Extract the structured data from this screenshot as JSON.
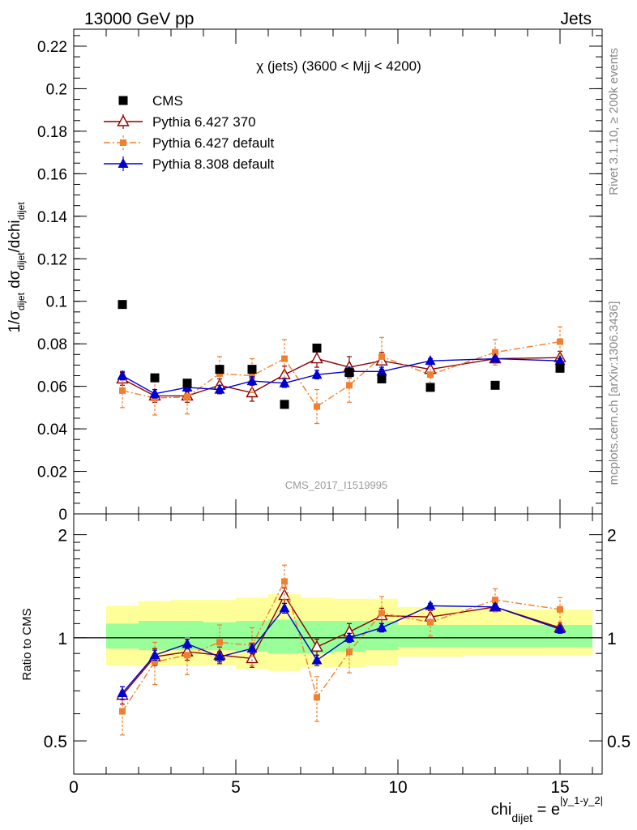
{
  "header": {
    "left_title": "13000 GeV pp",
    "right_title": "Jets",
    "plot_title": "χ (jets) (3600 < Mjj < 4200)",
    "watermark": "CMS_2017_I1519995",
    "side_label_top": "Rivet 3.1.10, ≥ 200k events",
    "side_label_bottom": "mcplots.cern.ch [arXiv:1306.3436]"
  },
  "chart_data": [
    {
      "type": "scatter",
      "panel": "main",
      "ylabel": "1/σdijet dσdijet/dchidijet",
      "ylim": [
        0,
        0.228
      ],
      "yticks": [
        "0",
        "0.02",
        "0.04",
        "0.06",
        "0.08",
        "0.1",
        "0.12",
        "0.14",
        "0.16",
        "0.18",
        "0.2",
        "0.22"
      ],
      "xlim": [
        0,
        16.3
      ],
      "legend_position": "top-left",
      "series": [
        {
          "name": "CMS",
          "color": "#000000",
          "marker": "square",
          "x": [
            1.5,
            2.5,
            3.5,
            4.5,
            5.5,
            6.5,
            7.5,
            8.5,
            9.5,
            11,
            13,
            15
          ],
          "values": [
            0.0985,
            0.064,
            0.0615,
            0.068,
            0.068,
            0.0515,
            0.078,
            0.0665,
            0.0635,
            0.0595,
            0.0605,
            0.0685
          ]
        },
        {
          "name": "Pythia 6.427 370",
          "color": "#8b0000",
          "marker": "open-triangle",
          "line": "solid",
          "x": [
            1.5,
            2.5,
            3.5,
            4.5,
            5.5,
            6.5,
            7.5,
            8.5,
            9.5,
            11,
            13,
            15
          ],
          "values": [
            0.0635,
            0.0555,
            0.0555,
            0.0605,
            0.057,
            0.0655,
            0.073,
            0.069,
            0.072,
            0.068,
            0.073,
            0.0735
          ],
          "errors": [
            0.003,
            0.003,
            0.003,
            0.003,
            0.004,
            0.004,
            0.004,
            0.005,
            0.004,
            0.003,
            0.002,
            0.003
          ]
        },
        {
          "name": "Pythia 6.427 default",
          "color": "#f08030",
          "marker": "square-small",
          "line": "dashdot",
          "x": [
            1.5,
            2.5,
            3.5,
            4.5,
            5.5,
            6.5,
            7.5,
            8.5,
            9.5,
            11,
            13,
            15
          ],
          "values": [
            0.058,
            0.0545,
            0.055,
            0.066,
            0.065,
            0.073,
            0.0505,
            0.0605,
            0.074,
            0.0655,
            0.076,
            0.081
          ],
          "errors": [
            0.008,
            0.008,
            0.008,
            0.008,
            0.008,
            0.009,
            0.008,
            0.008,
            0.009,
            0.006,
            0.006,
            0.007
          ]
        },
        {
          "name": "Pythia 8.308 default",
          "color": "#0000cc",
          "marker": "filled-triangle",
          "line": "solid",
          "x": [
            1.5,
            2.5,
            3.5,
            4.5,
            5.5,
            6.5,
            7.5,
            8.5,
            9.5,
            11,
            13,
            15
          ],
          "values": [
            0.065,
            0.0565,
            0.0595,
            0.0585,
            0.0625,
            0.0615,
            0.0655,
            0.067,
            0.067,
            0.072,
            0.073,
            0.072
          ],
          "errors": [
            0.002,
            0.002,
            0.002,
            0.002,
            0.002,
            0.002,
            0.002,
            0.002,
            0.002,
            0.001,
            0.001,
            0.001
          ]
        }
      ]
    },
    {
      "type": "scatter",
      "panel": "ratio",
      "ylabel": "Ratio to CMS",
      "ylim": [
        0.4,
        2.3
      ],
      "yscale": "log",
      "yticks": [
        "0.5",
        "1",
        "2"
      ],
      "xlim": [
        0,
        16.3
      ],
      "xticks": [
        "0",
        "5",
        "10",
        "15"
      ],
      "xlabel": "chidijet = e|y_1-y_2|",
      "bands": {
        "x_edges": [
          1,
          2,
          3,
          4,
          5,
          6,
          7,
          8,
          9,
          10,
          12,
          14,
          16
        ],
        "inner_color": "#99ff99",
        "outer_color": "#ffff99",
        "inner_lo": [
          0.93,
          0.92,
          0.92,
          0.92,
          0.91,
          0.9,
          0.9,
          0.91,
          0.92,
          0.94,
          0.94,
          0.94
        ],
        "inner_hi": [
          1.1,
          1.12,
          1.12,
          1.11,
          1.12,
          1.13,
          1.12,
          1.12,
          1.12,
          1.09,
          1.09,
          1.09
        ],
        "outer_lo": [
          0.83,
          0.83,
          0.83,
          0.83,
          0.81,
          0.8,
          0.82,
          0.82,
          0.83,
          0.88,
          0.89,
          0.89
        ],
        "outer_hi": [
          1.24,
          1.28,
          1.29,
          1.29,
          1.31,
          1.34,
          1.31,
          1.3,
          1.3,
          1.23,
          1.21,
          1.21
        ]
      },
      "series": [
        {
          "name": "Pythia 6.427 370",
          "color": "#8b0000",
          "marker": "open-triangle",
          "line": "solid",
          "x": [
            1.5,
            2.5,
            3.5,
            4.5,
            5.5,
            6.5,
            7.5,
            8.5,
            9.5,
            11,
            13,
            15
          ],
          "values": [
            0.68,
            0.88,
            0.91,
            0.89,
            0.87,
            1.33,
            0.94,
            1.04,
            1.16,
            1.15,
            1.23,
            1.07
          ],
          "errors": [
            0.04,
            0.05,
            0.05,
            0.05,
            0.05,
            0.07,
            0.05,
            0.06,
            0.06,
            0.05,
            0.03,
            0.04
          ]
        },
        {
          "name": "Pythia 6.427 default",
          "color": "#f08030",
          "marker": "square-small",
          "line": "dashdot",
          "x": [
            1.5,
            2.5,
            3.5,
            4.5,
            5.5,
            6.5,
            7.5,
            8.5,
            9.5,
            11,
            13,
            15
          ],
          "values": [
            0.61,
            0.85,
            0.89,
            0.97,
            0.95,
            1.46,
            0.67,
            0.91,
            1.18,
            1.11,
            1.29,
            1.21
          ],
          "errors": [
            0.09,
            0.12,
            0.11,
            0.12,
            0.12,
            0.17,
            0.1,
            0.12,
            0.14,
            0.1,
            0.1,
            0.1
          ]
        },
        {
          "name": "Pythia 8.308 default",
          "color": "#0000cc",
          "marker": "filled-triangle",
          "line": "solid",
          "x": [
            1.5,
            2.5,
            3.5,
            4.5,
            5.5,
            6.5,
            7.5,
            8.5,
            9.5,
            11,
            13,
            15
          ],
          "values": [
            0.69,
            0.89,
            0.96,
            0.88,
            0.93,
            1.22,
            0.86,
            1.0,
            1.07,
            1.24,
            1.23,
            1.06
          ],
          "errors": [
            0.03,
            0.03,
            0.03,
            0.03,
            0.03,
            0.04,
            0.03,
            0.03,
            0.03,
            0.02,
            0.02,
            0.02
          ]
        }
      ]
    }
  ]
}
